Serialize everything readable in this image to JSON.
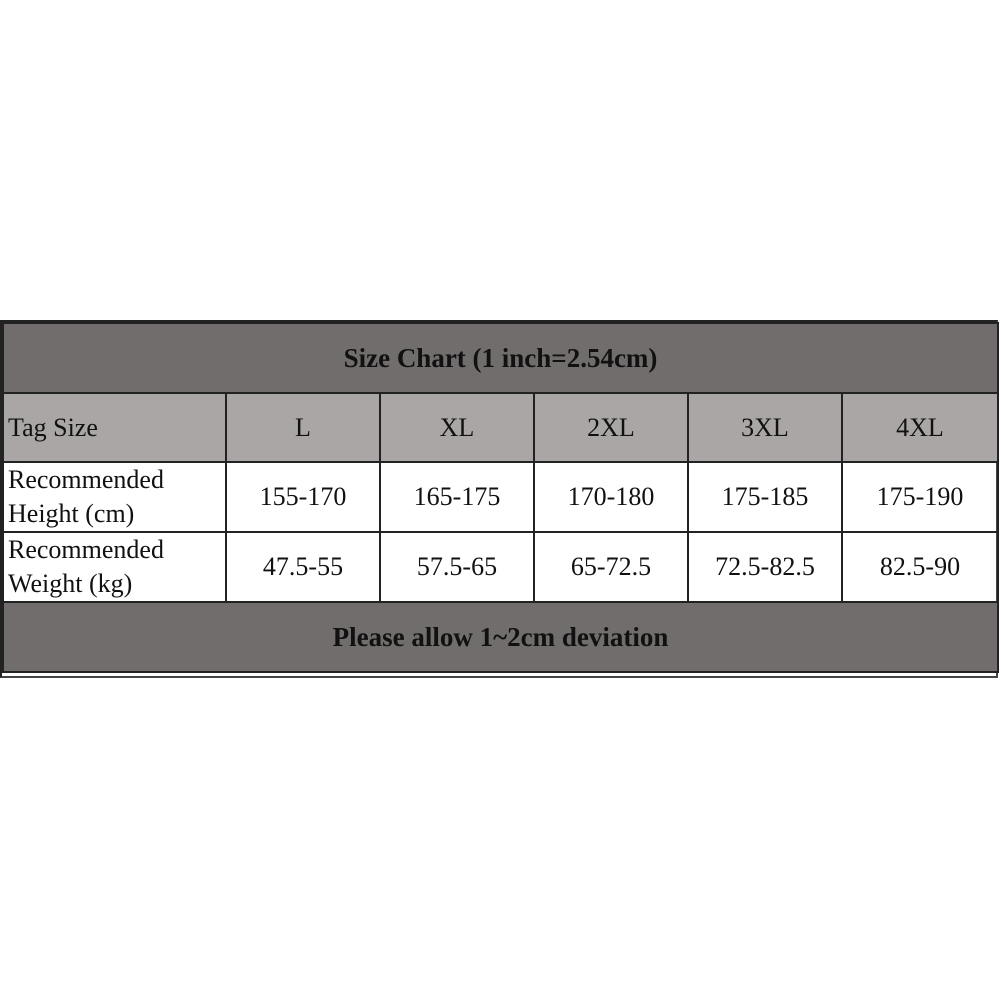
{
  "title": "Size Chart (1 inch=2.54cm)",
  "footer": "Please allow 1~2cm deviation",
  "colors": {
    "title_bg": "#716d6c",
    "header_bg": "#aaa6a5",
    "body_bg": "#ffffff"
  },
  "header": {
    "label": "Tag Size",
    "sizes": [
      "L",
      "XL",
      "2XL",
      "3XL",
      "4XL"
    ]
  },
  "rows": [
    {
      "label_line1": "Recommended",
      "label_line2": "Height (cm)",
      "values": [
        "155-170",
        "165-175",
        "170-180",
        "175-185",
        "175-190"
      ]
    },
    {
      "label_line1": "Recommended",
      "label_line2": "Weight (kg)",
      "values": [
        "47.5-55",
        "57.5-65",
        "65-72.5",
        "72.5-82.5",
        "82.5-90"
      ]
    }
  ]
}
